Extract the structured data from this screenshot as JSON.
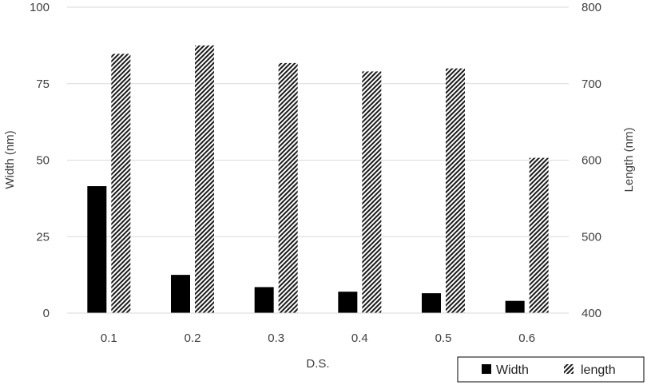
{
  "chart_data": {
    "type": "bar",
    "title": "",
    "xlabel": "D.S.",
    "ylabel": "Width (nm)",
    "y2label": "Length (nm)",
    "categories": [
      "0.1",
      "0.2",
      "0.3",
      "0.4",
      "0.5",
      "0.6"
    ],
    "ylim": [
      0,
      100
    ],
    "y2lim": [
      400,
      800
    ],
    "yticks": [
      "0",
      "25",
      "50",
      "75",
      "100"
    ],
    "y2ticks": [
      "400",
      "500",
      "600",
      "700",
      "800"
    ],
    "grid": true,
    "legend_position": "bottom-right",
    "series": [
      {
        "name": "Width",
        "axis": "left",
        "pattern": "solid",
        "color": "#000000",
        "values": [
          41.5,
          12.5,
          8.5,
          7,
          6.5,
          4
        ]
      },
      {
        "name": "length",
        "axis": "right",
        "pattern": "diagonal-hatch",
        "color": "#000000",
        "values": [
          739,
          750,
          727,
          716,
          720,
          603
        ]
      }
    ]
  }
}
